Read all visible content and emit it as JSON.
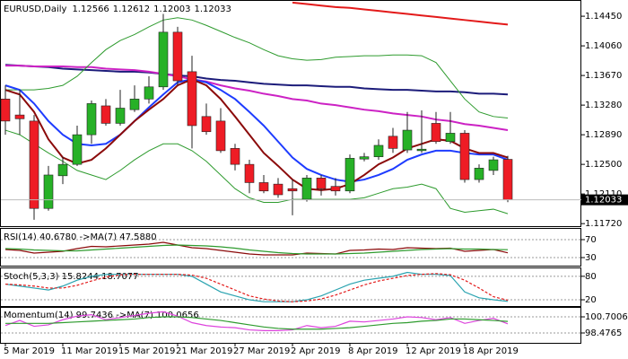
{
  "chart_data": [
    {
      "type": "candlestick",
      "symbol": "EURUSD,Daily",
      "categories": [
        "5 Mar 2019",
        null,
        null,
        null,
        "11 Mar 2019",
        null,
        null,
        null,
        "15 Mar 2019",
        null,
        null,
        null,
        "21 Mar 2019",
        null,
        null,
        null,
        "27 Mar 2019",
        null,
        null,
        null,
        "2 Apr 2019",
        null,
        null,
        null,
        "8 Apr 2019",
        null,
        null,
        null,
        "12 Apr 2019",
        null,
        null,
        null,
        "18 Apr 2019",
        null,
        null,
        null
      ],
      "open": [
        1.1336,
        1.1315,
        1.1307,
        1.1192,
        1.1235,
        1.125,
        1.1289,
        1.1327,
        1.1304,
        1.1322,
        1.1336,
        1.1352,
        1.1424,
        1.1372,
        1.1313,
        1.1307,
        1.1271,
        1.125,
        1.1226,
        1.1224,
        1.1218,
        1.1204,
        1.1232,
        1.1221,
        1.1215,
        1.1257,
        1.126,
        1.1287,
        1.1269,
        1.1268,
        1.1304,
        1.128,
        1.1291,
        1.123,
        1.1242,
        1.12566
      ],
      "high": [
        1.1354,
        1.1348,
        1.1315,
        1.1248,
        1.126,
        1.1301,
        1.1334,
        1.1336,
        1.1348,
        1.1354,
        1.1366,
        1.1448,
        1.1431,
        1.1393,
        1.133,
        1.1324,
        1.1277,
        1.1256,
        1.1236,
        1.1232,
        1.123,
        1.1236,
        1.1236,
        1.1232,
        1.1263,
        1.1265,
        1.1283,
        1.1298,
        1.1319,
        1.1321,
        1.1319,
        1.1319,
        1.1295,
        1.125,
        1.126,
        1.12612
      ],
      "low": [
        1.1289,
        1.1289,
        1.1177,
        1.1189,
        1.1224,
        1.1248,
        1.1277,
        1.1301,
        1.1301,
        1.1319,
        1.133,
        1.1348,
        1.1354,
        1.1271,
        1.1289,
        1.1265,
        1.1242,
        1.1212,
        1.1212,
        1.1206,
        1.1183,
        1.1201,
        1.1209,
        1.1209,
        1.1212,
        1.1254,
        1.1256,
        1.1265,
        1.1265,
        1.1265,
        1.1277,
        1.1277,
        1.1226,
        1.1226,
        1.1236,
        1.12003
      ],
      "close": [
        1.1307,
        1.131,
        1.1192,
        1.1236,
        1.125,
        1.1289,
        1.133,
        1.1304,
        1.1324,
        1.1336,
        1.1352,
        1.1424,
        1.136,
        1.1301,
        1.1293,
        1.1268,
        1.125,
        1.1226,
        1.1215,
        1.121,
        1.1215,
        1.1232,
        1.1218,
        1.1215,
        1.1258,
        1.126,
        1.1275,
        1.1271,
        1.1295,
        1.127,
        1.128,
        1.1291,
        1.123,
        1.1245,
        1.1256,
        1.12033
      ],
      "up_color": "#27b127",
      "down_color": "#ee1c25",
      "lines": [
        {
          "color": "#e31a1a",
          "values": [
            null,
            null,
            null,
            null,
            null,
            null,
            null,
            null,
            null,
            null,
            null,
            null,
            null,
            null,
            null,
            null,
            null,
            null,
            null,
            null,
            1.1463,
            1.1461,
            1.1459,
            1.1457,
            1.1456,
            1.1454,
            1.1452,
            1.145,
            1.1448,
            1.1446,
            1.1444,
            1.1442,
            1.144,
            1.1438,
            1.1436,
            1.1434
          ]
        },
        {
          "color": "#1c1c7a",
          "values": [
            1.1381,
            1.138,
            1.1379,
            1.1378,
            1.1376,
            1.1375,
            1.1374,
            1.1373,
            1.1372,
            1.1372,
            1.1371,
            1.1369,
            1.1367,
            1.1366,
            1.1363,
            1.1361,
            1.136,
            1.1358,
            1.1356,
            1.1355,
            1.1354,
            1.1354,
            1.1353,
            1.1352,
            1.1352,
            1.135,
            1.1349,
            1.1348,
            1.1348,
            1.1347,
            1.1346,
            1.1346,
            1.1345,
            1.1343,
            1.1343,
            1.1342
          ]
        },
        {
          "color": "#cc22c4",
          "values": [
            1.138,
            1.138,
            1.1379,
            1.1379,
            1.1379,
            1.1378,
            1.1378,
            1.1376,
            1.1375,
            1.1374,
            1.1372,
            1.1369,
            1.1366,
            1.1362,
            1.1359,
            1.1354,
            1.135,
            1.1347,
            1.1343,
            1.134,
            1.1336,
            1.1334,
            1.133,
            1.1328,
            1.1325,
            1.1322,
            1.132,
            1.1317,
            1.1315,
            1.1313,
            1.1309,
            1.1307,
            1.1303,
            1.1301,
            1.1298,
            1.1295
          ]
        },
        {
          "color": "#2e9b2e",
          "values": [
            1.1348,
            1.1348,
            1.1348,
            1.135,
            1.1354,
            1.1366,
            1.1384,
            1.1401,
            1.1413,
            1.1421,
            1.1431,
            1.144,
            1.1443,
            1.144,
            1.1433,
            1.1425,
            1.1417,
            1.141,
            1.1401,
            1.1393,
            1.1389,
            1.1387,
            1.1388,
            1.1391,
            1.1392,
            1.1393,
            1.1393,
            1.1394,
            1.1394,
            1.1393,
            1.1384,
            1.136,
            1.1336,
            1.1319,
            1.1313,
            1.1311
          ]
        },
        {
          "color": "#2e9b2e",
          "values": [
            1.1295,
            1.1289,
            1.1277,
            1.1265,
            1.1254,
            1.1242,
            1.1236,
            1.123,
            1.1242,
            1.1256,
            1.1268,
            1.1277,
            1.1277,
            1.1268,
            1.1254,
            1.1236,
            1.1218,
            1.1206,
            1.12,
            1.12,
            1.1204,
            1.1204,
            1.1204,
            1.1204,
            1.1204,
            1.1206,
            1.1212,
            1.1218,
            1.122,
            1.1224,
            1.1218,
            1.1192,
            1.1187,
            1.1189,
            1.1191,
            1.1185
          ]
        },
        {
          "color": "#1e3cff",
          "values": [
            1.1354,
            1.1348,
            1.133,
            1.1307,
            1.1289,
            1.1277,
            1.1275,
            1.1277,
            1.1289,
            1.1307,
            1.1325,
            1.1342,
            1.1358,
            1.1362,
            1.1358,
            1.1348,
            1.1336,
            1.1319,
            1.1301,
            1.128,
            1.1259,
            1.1244,
            1.1236,
            1.123,
            1.1227,
            1.123,
            1.1236,
            1.1244,
            1.1256,
            1.1263,
            1.1268,
            1.1268,
            1.1265,
            1.1263,
            1.1263,
            1.1256
          ]
        },
        {
          "color": "#8b0a0a",
          "values": [
            1.1348,
            1.1342,
            1.1319,
            1.1283,
            1.1259,
            1.1251,
            1.1256,
            1.1271,
            1.1289,
            1.1307,
            1.1322,
            1.1336,
            1.1354,
            1.1362,
            1.1354,
            1.1336,
            1.1313,
            1.1289,
            1.1265,
            1.1248,
            1.123,
            1.1218,
            1.1216,
            1.1218,
            1.1224,
            1.1236,
            1.125,
            1.1259,
            1.1271,
            1.1277,
            1.1283,
            1.1281,
            1.1271,
            1.1265,
            1.1265,
            1.1259
          ]
        }
      ],
      "ylim": [
        1.1171,
        1.1464
      ],
      "yticks": [
        {
          "value": 1.1445,
          "label": "1.14450"
        },
        {
          "value": 1.1406,
          "label": "1.14060"
        },
        {
          "value": 1.1367,
          "label": "1.13670"
        },
        {
          "value": 1.1328,
          "label": "1.13280"
        },
        {
          "value": 1.1289,
          "label": "1.12890"
        },
        {
          "value": 1.125,
          "label": "1.12500"
        },
        {
          "value": 1.1211,
          "label": "1.12110"
        },
        {
          "value": 1.1172,
          "label": "1.11720"
        }
      ]
    },
    {
      "type": "line",
      "title": "RSI(14) 40.6780 ->MA(7) 47.5880",
      "series": [
        {
          "color": "#8b0a0a",
          "values": [
            48,
            46,
            40,
            42,
            44,
            50,
            55,
            54,
            56,
            58,
            60,
            64,
            58,
            52,
            50,
            46,
            42,
            38,
            36,
            36,
            36,
            40,
            39,
            38,
            46,
            47,
            49,
            48,
            52,
            51,
            50,
            51,
            44,
            46,
            48,
            40.678
          ]
        },
        {
          "color": "#2e9b2e",
          "values": [
            50,
            49,
            47,
            46,
            45,
            45,
            47,
            49,
            51,
            53,
            55,
            57,
            58,
            57,
            56,
            54,
            51,
            47,
            44,
            41,
            39,
            38,
            38,
            38,
            39,
            40,
            42,
            44,
            46,
            48,
            49,
            50,
            49,
            49,
            48,
            47.588
          ]
        }
      ],
      "ylim": [
        12,
        92
      ],
      "yticks": [
        70,
        30
      ]
    },
    {
      "type": "line",
      "title": "Stoch(5,3,3) 15.8244 18.7077",
      "series": [
        {
          "color": "#2aa3b0",
          "values": [
            60,
            55,
            50,
            45,
            55,
            70,
            80,
            85,
            85,
            85,
            85,
            85,
            85,
            80,
            60,
            40,
            30,
            20,
            15,
            15,
            15,
            20,
            30,
            45,
            60,
            70,
            75,
            80,
            90,
            85,
            85,
            82,
            40,
            25,
            20,
            15.8244
          ]
        },
        {
          "color": "#e31a1a",
          "dashed": true,
          "values": [
            60,
            58,
            55,
            50,
            50,
            57,
            68,
            78,
            84,
            85,
            85,
            85,
            85,
            83,
            75,
            60,
            45,
            30,
            22,
            17,
            15,
            17,
            22,
            32,
            45,
            58,
            68,
            75,
            82,
            85,
            87,
            84,
            70,
            50,
            28,
            18.7077
          ]
        }
      ],
      "ylim": [
        4,
        98
      ],
      "yticks": [
        80,
        20
      ]
    },
    {
      "type": "line",
      "title": "Momentum(14) 99.7436 ->MA(7) 100.0656",
      "series": [
        {
          "color": "#dd44dd",
          "values": [
            99.5,
            100.2,
            99.4,
            99.6,
            100.3,
            100.8,
            101.0,
            100.3,
            100.6,
            100.9,
            101.2,
            101.4,
            100.8,
            99.9,
            99.5,
            99.3,
            99.2,
            98.9,
            98.8,
            98.8,
            98.9,
            99.5,
            99.2,
            99.4,
            100.1,
            100.0,
            100.2,
            100.4,
            100.7,
            100.6,
            100.3,
            100.6,
            99.8,
            100.2,
            100.5,
            99.7436
          ]
        },
        {
          "color": "#2e9b2e",
          "values": [
            99.8,
            99.8,
            99.8,
            99.8,
            99.9,
            100.0,
            100.1,
            100.2,
            100.3,
            100.4,
            100.6,
            100.7,
            100.7,
            100.6,
            100.4,
            100.2,
            99.9,
            99.6,
            99.3,
            99.1,
            99.0,
            99.0,
            99.0,
            99.1,
            99.2,
            99.4,
            99.6,
            99.8,
            99.9,
            100.1,
            100.2,
            100.4,
            100.4,
            100.3,
            100.2,
            100.0656
          ]
        }
      ],
      "ylim": [
        97.24,
        101.94
      ],
      "yticks": [
        100.7006,
        98.4765
      ]
    }
  ]
}
